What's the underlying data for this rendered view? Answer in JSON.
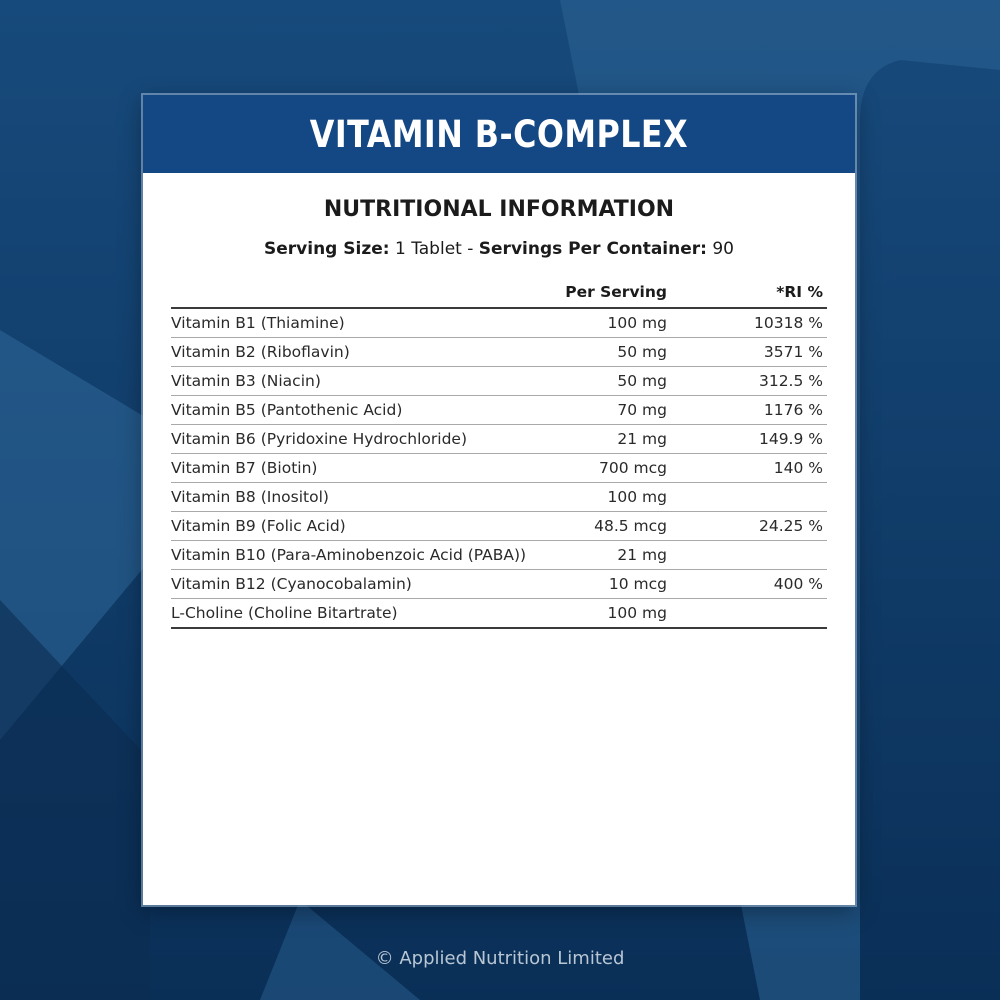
{
  "header": {
    "title": "VITAMIN B-COMPLEX"
  },
  "info": {
    "section_title": "NUTRITIONAL INFORMATION",
    "serving_size_label": "Serving Size:",
    "serving_size_value": "1 Tablet",
    "separator": "-",
    "servings_label": "Servings Per Container:",
    "servings_value": "90"
  },
  "table": {
    "columns": [
      "",
      "Per Serving",
      "*RI %"
    ],
    "rows": [
      {
        "name": "Vitamin B1 (Thiamine)",
        "per_serving": "100 mg",
        "ri": "10318 %"
      },
      {
        "name": "Vitamin B2 (Riboflavin)",
        "per_serving": "50 mg",
        "ri": "3571 %"
      },
      {
        "name": "Vitamin B3 (Niacin)",
        "per_serving": "50 mg",
        "ri": "312.5 %"
      },
      {
        "name": "Vitamin B5 (Pantothenic Acid)",
        "per_serving": "70 mg",
        "ri": "1176 %"
      },
      {
        "name": "Vitamin B6 (Pyridoxine Hydrochloride)",
        "per_serving": "21 mg",
        "ri": "149.9 %"
      },
      {
        "name": "Vitamin B7 (Biotin)",
        "per_serving": "700 mcg",
        "ri": "140 %"
      },
      {
        "name": "Vitamin B8 (Inositol)",
        "per_serving": "100 mg",
        "ri": ""
      },
      {
        "name": "Vitamin B9 (Folic Acid)",
        "per_serving": "48.5 mcg",
        "ri": "24.25 %"
      },
      {
        "name": "Vitamin B10 (Para-Aminobenzoic Acid (PABA))",
        "per_serving": "21 mg",
        "ri": ""
      },
      {
        "name": "Vitamin B12 (Cyanocobalamin)",
        "per_serving": "10 mcg",
        "ri": "400 %"
      },
      {
        "name": "L-Choline (Choline Bitartrate)",
        "per_serving": "100 mg",
        "ri": ""
      }
    ]
  },
  "footer": {
    "copyright": "© Applied Nutrition Limited"
  },
  "colors": {
    "background": "#0d3a68",
    "header_band": "#134884",
    "card": "#ffffff"
  }
}
